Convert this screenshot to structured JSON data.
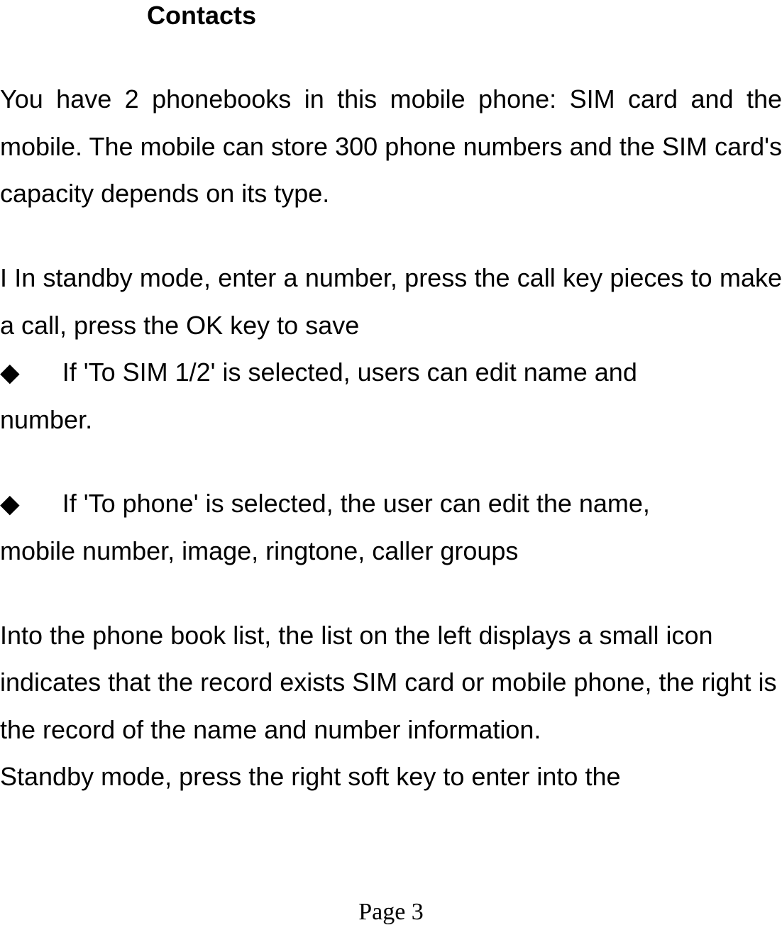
{
  "heading": "Contacts",
  "paragraph1": "You have 2 phonebooks in this mobile phone: SIM card and the mobile. The mobile can store 300 phone numbers and the SIM card's capacity depends on its type.",
  "paragraph2": "I In standby mode, enter a number, press the call key pieces to make a call, press the OK key to save",
  "bullet_glyph": "◆",
  "bullet1_first": "If 'To SIM 1/2' is selected, users can edit name and",
  "bullet1_cont": "number.",
  "bullet2_first": "If 'To phone' is selected, the user can edit the name,",
  "bullet2_cont": "mobile number, image, ringtone, caller groups",
  "paragraph3": "Into the phone book list, the list on the left displays a small icon indicates that the record exists SIM card or mobile phone, the right is the record of the name and number information.",
  "paragraph4": "Standby mode, press the right soft key to enter into the",
  "page_number": "Page 3",
  "colors": {
    "background": "#ffffff",
    "text": "#000000"
  },
  "fontsize_body": 36,
  "fontsize_heading": 36,
  "fontsize_pagenum": 34
}
